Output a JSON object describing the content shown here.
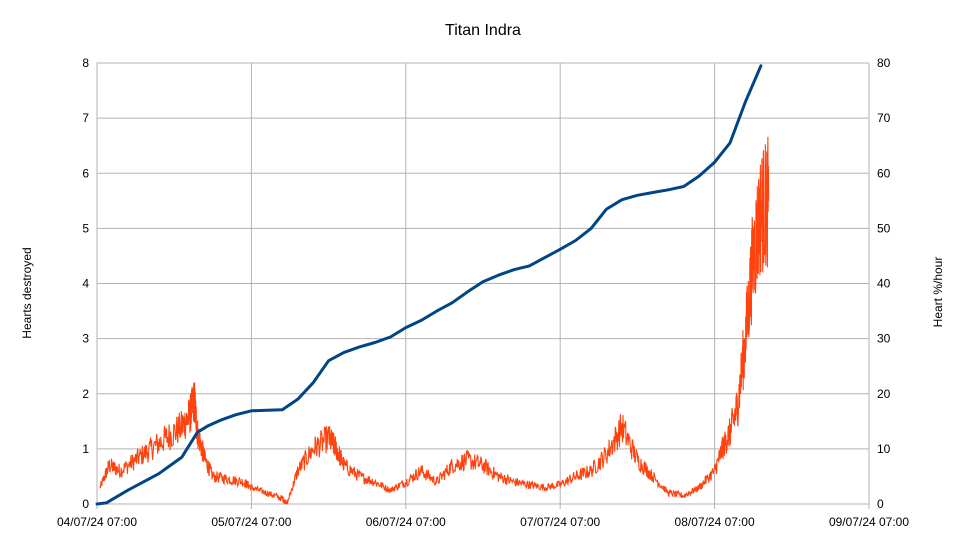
{
  "chart_data": {
    "type": "line",
    "title": "Titan Indra",
    "ylabel": "Hearts destroyed",
    "y2label": "Heart %/hour",
    "x_ticks": [
      "04/07/24 07:00",
      "05/07/24 07:00",
      "06/07/24 07:00",
      "07/07/24 07:00",
      "08/07/24 07:00",
      "09/07/24 07:00"
    ],
    "xlim_days": [
      0,
      5
    ],
    "ylim": [
      0,
      8
    ],
    "y_ticks": [
      "0",
      "1",
      "2",
      "3",
      "4",
      "5",
      "6",
      "7",
      "8"
    ],
    "y2lim": [
      0,
      80
    ],
    "y2_ticks": [
      "0",
      "10",
      "20",
      "30",
      "40",
      "50",
      "60",
      "70",
      "80"
    ],
    "grid": true,
    "colors": {
      "hearts": "#004586",
      "rate": "#ff420e",
      "grid": "#b3b3b3"
    },
    "series": [
      {
        "axis": "left",
        "x_days": [
          0.0,
          0.06,
          0.2,
          0.4,
          0.55,
          0.65,
          0.72,
          0.8,
          0.9,
          1.0,
          1.1,
          1.2,
          1.3,
          1.4,
          1.5,
          1.6,
          1.7,
          1.8,
          1.9,
          2.0,
          2.1,
          2.2,
          2.3,
          2.4,
          2.5,
          2.6,
          2.7,
          2.8,
          2.9,
          3.0,
          3.1,
          3.2,
          3.3,
          3.4,
          3.5,
          3.6,
          3.7,
          3.8,
          3.9,
          4.0,
          4.1,
          4.2,
          4.3,
          4.4,
          4.5,
          4.55,
          4.6
        ],
        "values": [
          0.0,
          0.02,
          0.25,
          0.55,
          0.85,
          1.3,
          1.42,
          1.52,
          1.62,
          1.69,
          1.7,
          1.71,
          1.9,
          2.2,
          2.6,
          2.75,
          2.85,
          2.93,
          3.03,
          3.2,
          3.33,
          3.5,
          3.65,
          3.85,
          4.03,
          4.15,
          4.25,
          4.32,
          4.47,
          4.62,
          4.78,
          5.0,
          5.35,
          5.52,
          5.6,
          5.65,
          5.7,
          5.76,
          5.95,
          6.2,
          6.55,
          7.3,
          7.95,
          null,
          null,
          null,
          null
        ]
      },
      {
        "axis": "right",
        "x_days": [
          0.02,
          0.08,
          0.15,
          0.25,
          0.35,
          0.45,
          0.55,
          0.6,
          0.63,
          0.65,
          0.7,
          0.75,
          0.85,
          0.95,
          1.0,
          1.1,
          1.2,
          1.23,
          1.3,
          1.4,
          1.5,
          1.55,
          1.6,
          1.7,
          1.8,
          1.9,
          2.0,
          2.1,
          2.2,
          2.3,
          2.4,
          2.5,
          2.6,
          2.7,
          2.8,
          2.9,
          3.0,
          3.1,
          3.2,
          3.3,
          3.4,
          3.5,
          3.6,
          3.7,
          3.8,
          3.9,
          4.0,
          4.05,
          4.1,
          4.15,
          4.2,
          4.25,
          4.3,
          4.35,
          4.4,
          4.45,
          4.5,
          4.55,
          4.6
        ],
        "values": [
          3,
          7,
          6,
          8,
          10,
          12,
          14,
          16,
          19,
          13,
          8,
          5,
          4.5,
          4,
          3,
          2,
          1,
          0,
          6,
          10,
          12,
          10,
          7,
          5,
          4,
          2.5,
          4,
          6,
          4,
          7,
          8,
          7,
          5,
          4,
          3.5,
          3,
          3.5,
          5,
          6,
          9,
          14,
          8,
          5,
          2,
          1.5,
          3,
          6,
          10,
          13,
          18,
          30,
          45,
          53,
          55,
          null,
          null,
          null,
          null,
          null
        ]
      }
    ]
  }
}
